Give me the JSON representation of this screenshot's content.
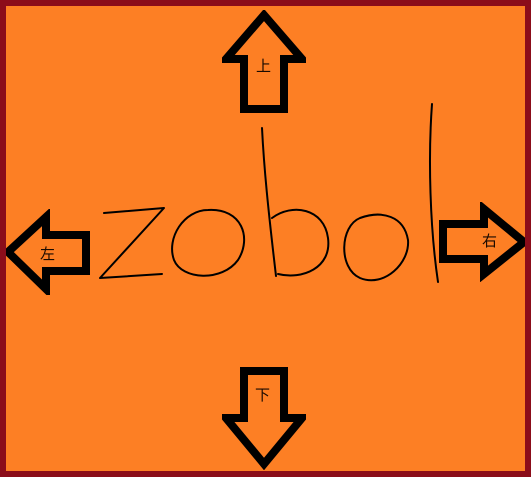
{
  "game": {
    "logo_text": "zobol",
    "controls": {
      "up": {
        "label": "上",
        "icon": "arrow-up-icon"
      },
      "down": {
        "label": "下",
        "icon": "arrow-down-icon"
      },
      "left": {
        "label": "左",
        "icon": "arrow-left-icon"
      },
      "right": {
        "label": "右",
        "icon": "arrow-right-icon"
      }
    }
  },
  "colors": {
    "background": "#fd7f24",
    "border": "#8b0d1a",
    "ink": "#000000"
  }
}
